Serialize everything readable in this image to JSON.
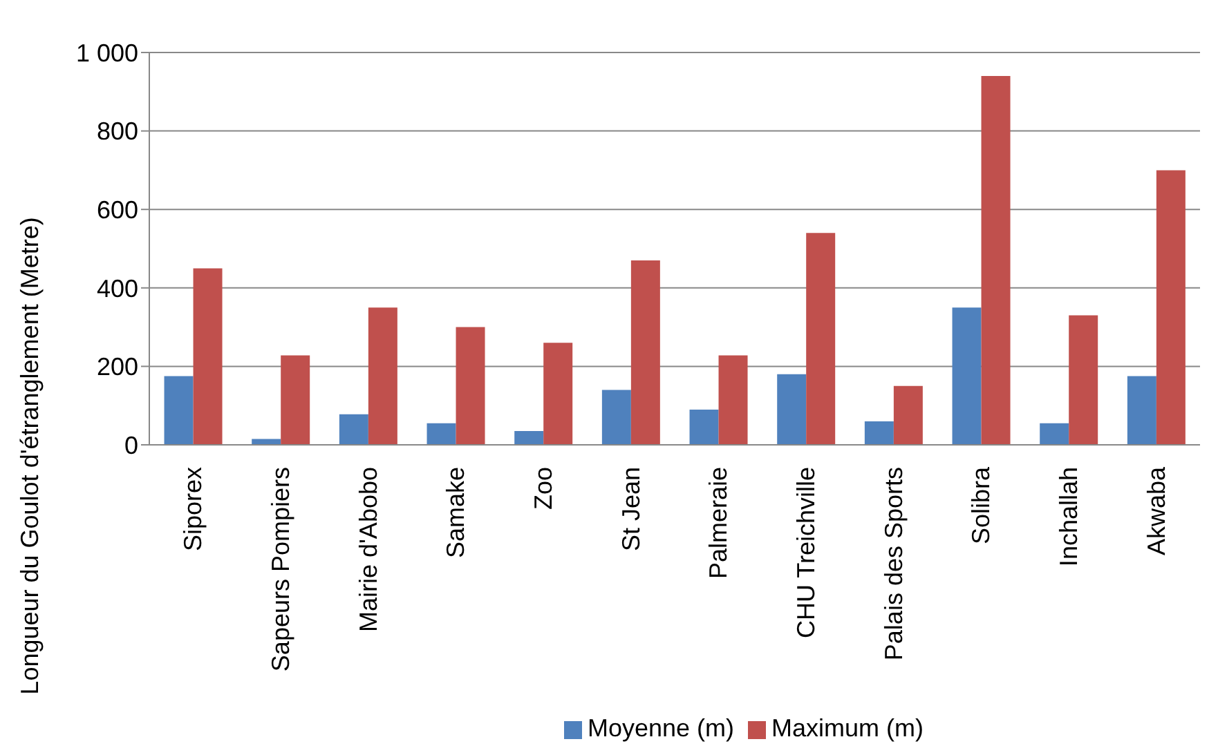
{
  "chart_data": {
    "type": "bar",
    "ylabel": "Longueur du Goulot d'étranglement (Metre)",
    "categories": [
      "Siporex",
      "Sapeurs Pompiers",
      "Mairie d'Abobo",
      "Samake",
      "Zoo",
      "St Jean",
      "Palmeraie",
      "CHU Treichville",
      "Palais des Sports",
      "Solibra",
      "Inchallah",
      "Akwaba"
    ],
    "series": [
      {
        "name": "Moyenne (m)",
        "color": "#4f81bd",
        "values": [
          175,
          15,
          78,
          55,
          35,
          140,
          90,
          180,
          60,
          350,
          55,
          175
        ]
      },
      {
        "name": "Maximum (m)",
        "color": "#c0504d",
        "values": [
          450,
          228,
          350,
          300,
          260,
          470,
          228,
          540,
          150,
          940,
          330,
          700
        ]
      }
    ],
    "ylim": [
      0,
      1000
    ],
    "yticks": [
      0,
      200,
      400,
      600,
      800,
      {
        "value": 1000,
        "label": "1 000"
      }
    ],
    "grid": "y",
    "legend": "bottom"
  }
}
